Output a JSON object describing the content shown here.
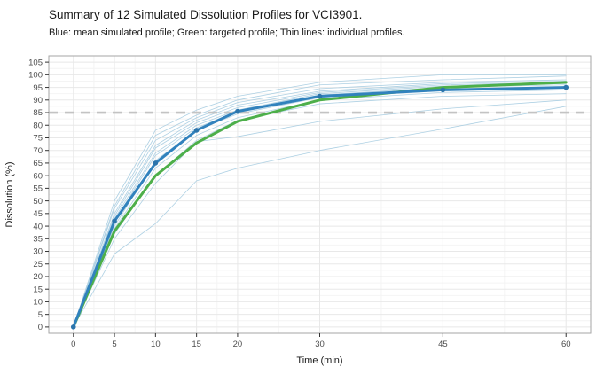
{
  "header": {
    "title": "Summary of 12 Simulated Dissolution Profiles for VCI3901.",
    "subtitle": "Blue: mean simulated profile; Green: targeted profile; Thin lines: individual profiles."
  },
  "chart_data": {
    "type": "line",
    "xlabel": "Time (min)",
    "ylabel": "Dissolution (%)",
    "x": [
      0,
      5,
      10,
      15,
      20,
      30,
      45,
      60
    ],
    "x_ticks": [
      0,
      5,
      10,
      15,
      20,
      30,
      45,
      60
    ],
    "y_ticks": [
      0,
      5,
      10,
      15,
      20,
      25,
      30,
      35,
      40,
      45,
      50,
      55,
      60,
      65,
      70,
      75,
      80,
      85,
      90,
      95,
      100,
      105
    ],
    "xlim": [
      -3,
      63
    ],
    "ylim": [
      -2.5,
      107.5
    ],
    "grid": true,
    "legend_position": "none",
    "reference_line": {
      "y": 85,
      "style": "dashed",
      "color": "#c3c3c3",
      "width": 2.6
    },
    "mean_simulated_profile": {
      "name": "Mean simulated profile",
      "color": "#3182bd",
      "width": 3,
      "show_points": true,
      "point_color": "#2b74ab",
      "values": [
        0,
        42,
        65,
        78,
        85.5,
        91.5,
        94,
        95
      ]
    },
    "targeted_profile": {
      "name": "Targeted profile",
      "color": "#4daf4a",
      "width": 3,
      "show_points": false,
      "values": [
        0,
        38,
        60,
        73,
        81.5,
        90,
        95,
        97
      ]
    },
    "individual_profiles": {
      "name": "Individual profiles",
      "color": "#a9cde2",
      "width": 0.8,
      "count": 12,
      "values": [
        [
          0,
          50,
          78,
          86,
          91.5,
          97,
          100,
          100
        ],
        [
          0,
          48,
          76,
          84,
          90,
          96,
          98,
          99.5
        ],
        [
          0,
          47,
          74,
          83,
          89,
          94.5,
          97,
          98
        ],
        [
          0,
          45,
          72,
          82,
          88,
          93.5,
          96.5,
          97.5
        ],
        [
          0,
          44,
          71,
          81,
          87,
          93,
          96,
          97
        ],
        [
          0,
          43,
          69,
          80,
          86,
          92.5,
          95.5,
          96.5
        ],
        [
          0,
          42,
          68,
          79,
          85.5,
          92,
          95,
          96
        ],
        [
          0,
          40,
          66,
          78,
          84.5,
          91,
          94,
          95
        ],
        [
          0,
          39,
          63,
          76,
          83,
          90,
          93,
          94
        ],
        [
          0,
          37,
          60,
          74,
          82,
          88.5,
          91.5,
          92.5
        ],
        [
          0,
          35,
          57,
          73.5,
          75.5,
          81.5,
          86.5,
          90
        ],
        [
          0,
          29,
          41,
          58,
          63,
          70,
          78.5,
          87.5
        ]
      ]
    },
    "style": {
      "panel_border": "#a6a6a6",
      "grid_major": "#e8e8e8",
      "grid_minor": "#f4f4f4",
      "tick_color": "#333333",
      "tick_label_color": "#4d4d4d",
      "axis_title_color": "#1a1a1a"
    }
  }
}
